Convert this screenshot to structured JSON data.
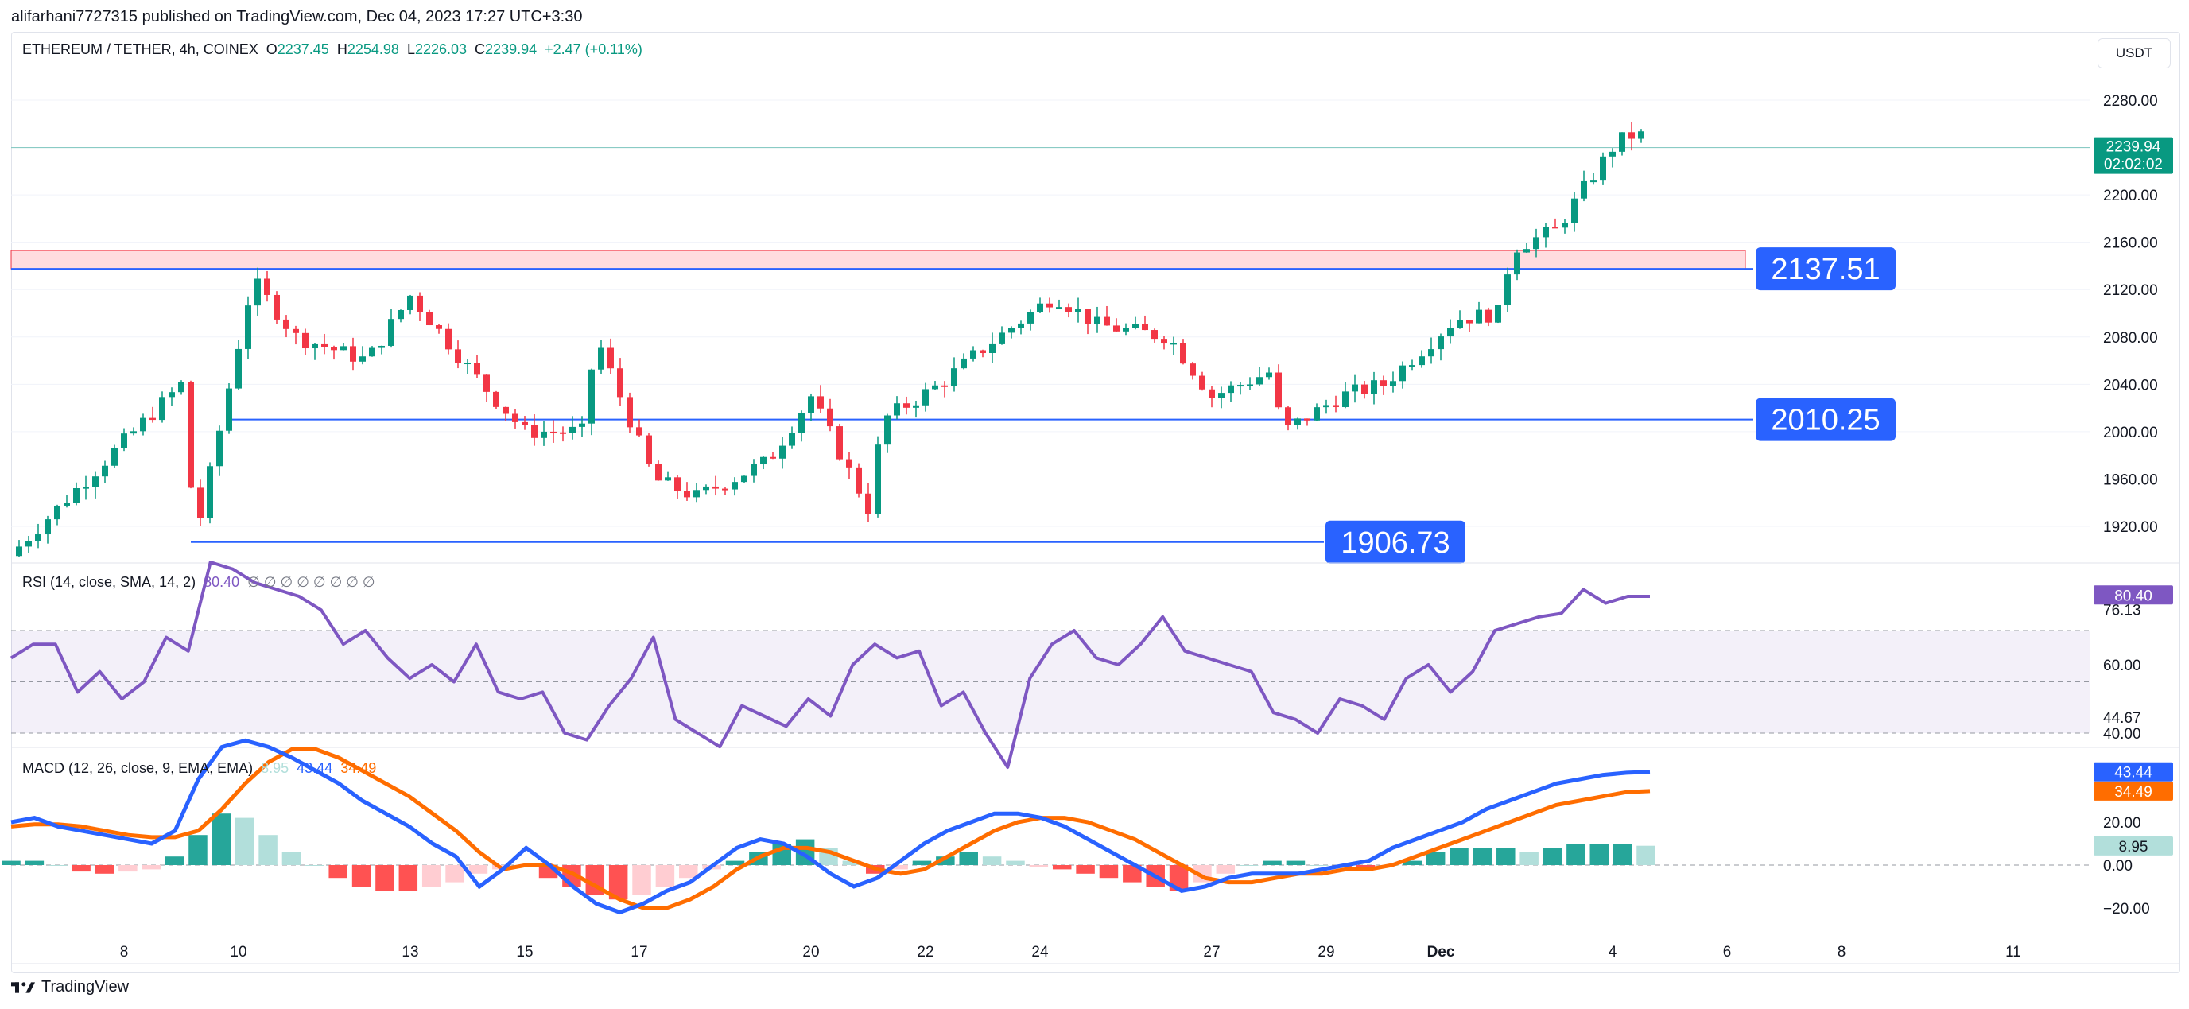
{
  "header": {
    "publisher_line": "alifarhani7727315 published on TradingView.com, Dec 04, 2023 17:27 UTC+3:30"
  },
  "currency_button": "USDT",
  "footer": {
    "brand": "TradingView"
  },
  "legend": {
    "symbol": "ETHEREUM / TETHER, 4h, COINEX",
    "o_label": "O",
    "o_value": "2237.45",
    "h_label": "H",
    "h_value": "2254.98",
    "l_label": "L",
    "l_value": "2226.03",
    "c_label": "C",
    "c_value": "2239.94",
    "change": "+2.47 (+0.11%)",
    "rsi_label": "RSI (14, close, SMA, 14, 2)",
    "rsi_value": "80.40",
    "rsi_extra": "∅ ∅ ∅ ∅ ∅ ∅ ∅ ∅",
    "macd_label": "MACD (12, 26, close, 9, EMA, EMA)",
    "macd_hist": "8.95",
    "macd_line": "43.44",
    "macd_signal": "34.49"
  },
  "colors": {
    "up": "#089981",
    "down": "#f23645",
    "rsi": "#7e57c2",
    "macd": "#2962ff",
    "signal": "#ff6d00",
    "level": "#2962ff"
  },
  "chart_data": [
    {
      "type": "candlestick",
      "title": "ETHEREUM / TETHER, 4h, COINEX",
      "y_axis_ticks": [
        1920,
        1960,
        2000,
        2040,
        2080,
        2120,
        2160,
        2200,
        2240,
        2280
      ],
      "y_axis_tick_labels": [
        "1920.00",
        "1960.00",
        "2000.00",
        "2040.00",
        "2080.00",
        "2120.00",
        "2160.00",
        "2200.00",
        "",
        "2280.00"
      ],
      "x_axis_ticks": [
        "8",
        "10",
        "13",
        "15",
        "17",
        "20",
        "22",
        "24",
        "27",
        "29",
        "Dec",
        "4",
        "6",
        "8",
        "11"
      ],
      "last_price": {
        "value": 2239.94,
        "label": "2239.94",
        "countdown": "02:02:02"
      },
      "horizontal_levels": [
        {
          "value": 2137.51,
          "label": "2137.51"
        },
        {
          "value": 2010.25,
          "label": "2010.25"
        },
        {
          "value": 1906.73,
          "label": "1906.73"
        }
      ],
      "zone": {
        "low": 2137.51,
        "high": 2153,
        "color": "#ffcdd2"
      },
      "anchor_points": [
        {
          "date": "Nov 06",
          "close": 1895
        },
        {
          "date": "Nov 09",
          "close": 1910
        },
        {
          "date": "Nov 09",
          "close": 2040
        },
        {
          "date": "Nov 10",
          "close": 2128
        },
        {
          "date": "Nov 11",
          "close": 2080
        },
        {
          "date": "Nov 12",
          "close": 2060
        },
        {
          "date": "Nov 13",
          "close": 2115
        },
        {
          "date": "Nov 14",
          "close": 2040
        },
        {
          "date": "Nov 15",
          "close": 2000
        },
        {
          "date": "Nov 16",
          "close": 2080
        },
        {
          "date": "Nov 16",
          "close": 2000
        },
        {
          "date": "Nov 17",
          "close": 1960
        },
        {
          "date": "Nov 18",
          "close": 1945
        },
        {
          "date": "Nov 19",
          "close": 1975
        },
        {
          "date": "Nov 20",
          "close": 2030
        },
        {
          "date": "Nov 21",
          "close": 2010
        },
        {
          "date": "Nov 21",
          "close": 1935
        },
        {
          "date": "Nov 22",
          "close": 2040
        },
        {
          "date": "Nov 23",
          "close": 2070
        },
        {
          "date": "Nov 24",
          "close": 2115
        },
        {
          "date": "Nov 25",
          "close": 2090
        },
        {
          "date": "Nov 26",
          "close": 2080
        },
        {
          "date": "Nov 27",
          "close": 2030
        },
        {
          "date": "Nov 28",
          "close": 2000
        },
        {
          "date": "Nov 28",
          "close": 2050
        },
        {
          "date": "Nov 29",
          "close": 2030
        },
        {
          "date": "Nov 30",
          "close": 2040
        },
        {
          "date": "Dec 01",
          "close": 2095
        },
        {
          "date": "Dec 02",
          "close": 2100
        },
        {
          "date": "Dec 02",
          "close": 2155
        },
        {
          "date": "Dec 03",
          "close": 2170
        },
        {
          "date": "Dec 04",
          "close": 2250
        },
        {
          "date": "Dec 04",
          "close": 2239.94
        }
      ]
    },
    {
      "type": "line",
      "title": "RSI (14, close, SMA, 14, 2)",
      "y_axis_ticks": [
        40,
        44.67,
        60,
        76.13,
        80.4
      ],
      "y_axis_tick_labels": [
        "40.00",
        "44.67",
        "60.00",
        "76.13",
        "80.40"
      ],
      "bands": [
        40,
        70
      ],
      "series": [
        {
          "name": "RSI",
          "values": [
            62,
            66,
            66,
            52,
            58,
            50,
            55,
            68,
            64,
            90,
            88,
            84,
            82,
            80,
            76,
            66,
            70,
            62,
            56,
            60,
            55,
            66,
            52,
            50,
            52,
            40,
            38,
            48,
            56,
            68,
            44,
            40,
            36,
            48,
            45,
            42,
            50,
            45,
            60,
            66,
            62,
            64,
            48,
            52,
            40,
            30,
            56,
            66,
            70,
            62,
            60,
            66,
            74,
            64,
            62,
            60,
            58,
            46,
            44,
            40,
            50,
            48,
            44,
            56,
            60,
            52,
            58,
            70,
            72,
            74,
            75,
            82,
            78,
            80,
            80
          ]
        }
      ],
      "current": 80.4
    },
    {
      "type": "bar",
      "title": "MACD (12, 26, close, 9, EMA, EMA)",
      "y_axis_ticks": [
        -20,
        0,
        20,
        34.49,
        43.44
      ],
      "y_axis_tick_labels": [
        "−20.00",
        "0.00",
        "20.00",
        "34.49",
        "43.44"
      ],
      "series": [
        {
          "name": "Histogram",
          "values": [
            2,
            2,
            0,
            -3,
            -4,
            -3,
            -2,
            4,
            14,
            24,
            22,
            14,
            6,
            0,
            -6,
            -10,
            -12,
            -12,
            -10,
            -8,
            -4,
            -2,
            -1,
            -6,
            -10,
            -14,
            -16,
            -14,
            -10,
            -6,
            -2,
            2,
            6,
            10,
            12,
            8,
            2,
            -4,
            -2,
            2,
            4,
            6,
            4,
            2,
            -1,
            -2,
            -4,
            -6,
            -8,
            -10,
            -12,
            -8,
            -4,
            0,
            2,
            2,
            0,
            -1,
            -1,
            0,
            2,
            6,
            8,
            8,
            8,
            6,
            8,
            10,
            10,
            10,
            9
          ]
        },
        {
          "name": "MACD",
          "values": [
            20,
            22,
            18,
            16,
            14,
            12,
            10,
            16,
            40,
            55,
            58,
            55,
            50,
            44,
            38,
            30,
            24,
            18,
            10,
            4,
            -10,
            -2,
            8,
            0,
            -10,
            -18,
            -22,
            -18,
            -12,
            -8,
            0,
            8,
            12,
            10,
            4,
            -4,
            -10,
            -6,
            2,
            10,
            16,
            20,
            24,
            24,
            22,
            18,
            12,
            6,
            0,
            -6,
            -12,
            -10,
            -6,
            -4,
            -4,
            -4,
            -2,
            0,
            2,
            8,
            12,
            16,
            20,
            26,
            30,
            34,
            38,
            40,
            42,
            43,
            43.44
          ]
        },
        {
          "name": "Signal",
          "values": [
            18,
            19,
            19,
            18,
            16,
            14,
            13,
            13,
            16,
            26,
            38,
            48,
            54,
            54,
            50,
            44,
            38,
            32,
            24,
            16,
            6,
            -2,
            0,
            0,
            -4,
            -10,
            -16,
            -20,
            -20,
            -16,
            -10,
            -2,
            4,
            8,
            8,
            6,
            2,
            -2,
            -4,
            -2,
            4,
            10,
            16,
            20,
            22,
            22,
            20,
            16,
            12,
            6,
            0,
            -6,
            -8,
            -8,
            -6,
            -4,
            -4,
            -2,
            -2,
            0,
            4,
            8,
            12,
            16,
            20,
            24,
            28,
            30,
            32,
            34,
            34.49
          ]
        }
      ],
      "current": {
        "histogram": 8.95,
        "macd": 43.44,
        "signal": 34.49
      }
    }
  ]
}
